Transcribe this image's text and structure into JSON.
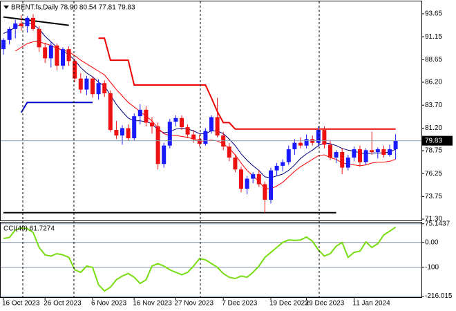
{
  "chart_data": [
    {
      "type": "candlestick",
      "title": "BRENT.fs,Daily  78.90 80.54 77.81 79.83",
      "categories": [
        "16 Oct 2023",
        null,
        null,
        null,
        null,
        null,
        null,
        "26 Oct 2023",
        null,
        null,
        null,
        null,
        null,
        null,
        null,
        "6 Nov 2023",
        null,
        null,
        null,
        null,
        null,
        null,
        "16 Nov 2023",
        null,
        null,
        null,
        null,
        null,
        null,
        "27 Nov 2023",
        null,
        null,
        null,
        null,
        null,
        null,
        null,
        "7 Dec 2023",
        null,
        null,
        null,
        null,
        null,
        null,
        null,
        "19 Dec 2023",
        null,
        null,
        null,
        null,
        null,
        "29 Dec 2023",
        null,
        null,
        null,
        null,
        null,
        null,
        null,
        "11 Jan 2024",
        null,
        null,
        null,
        null,
        null,
        null,
        null
      ],
      "open": [
        89.8,
        90.8,
        92.0,
        92.6,
        92.3,
        93.2,
        92.0,
        90.0,
        88.8,
        90.2,
        88.0,
        89.8,
        88.5,
        86.6,
        85.4,
        86.6,
        84.9,
        86.1,
        85.0,
        81.0,
        80.4,
        81.2,
        80.1,
        82.5,
        83.2,
        81.8,
        81.4,
        77.3,
        79.3,
        81.9,
        82.3,
        81.3,
        80.5,
        80.0,
        79.5,
        80.9,
        82.4,
        80.4,
        79.2,
        78.0,
        76.7,
        74.6,
        75.7,
        76.2,
        75.1,
        73.4,
        76.6,
        77.1,
        77.5,
        78.9,
        79.6,
        79.3,
        80.0,
        79.6,
        81.0,
        79.4,
        78.0,
        78.6,
        76.9,
        78.0,
        78.9,
        77.5,
        78.8,
        78.6,
        78.9,
        78.3,
        78.9
      ],
      "high": [
        91.0,
        92.2,
        93.0,
        93.5,
        93.4,
        93.6,
        92.3,
        90.5,
        90.6,
        90.4,
        90.0,
        90.1,
        88.8,
        87.2,
        86.9,
        86.8,
        86.5,
        86.4,
        85.3,
        82.0,
        81.5,
        81.6,
        82.8,
        83.8,
        83.6,
        82.4,
        81.8,
        79.6,
        82.2,
        82.6,
        82.6,
        81.6,
        81.0,
        80.5,
        81.2,
        82.6,
        84.5,
        80.8,
        79.6,
        78.3,
        77.0,
        76.0,
        76.4,
        76.6,
        75.4,
        76.9,
        77.4,
        77.8,
        79.3,
        80.0,
        80.2,
        80.5,
        80.4,
        81.4,
        81.4,
        79.8,
        78.8,
        79.0,
        78.3,
        79.2,
        79.3,
        79.0,
        80.8,
        79.1,
        79.3,
        79.4,
        80.54
      ],
      "low": [
        89.2,
        90.3,
        91.0,
        91.8,
        91.6,
        91.8,
        89.5,
        88.3,
        87.8,
        87.5,
        87.6,
        88.0,
        86.2,
        85.0,
        84.8,
        84.5,
        84.3,
        84.6,
        80.8,
        80.0,
        79.4,
        79.8,
        79.9,
        81.6,
        81.4,
        80.6,
        76.7,
        76.9,
        79.0,
        81.4,
        81.0,
        80.1,
        79.6,
        79.2,
        79.3,
        80.6,
        80.2,
        78.8,
        77.6,
        76.4,
        74.2,
        74.0,
        75.2,
        74.8,
        72.0,
        73.0,
        76.0,
        76.5,
        77.2,
        78.3,
        79.0,
        79.0,
        79.3,
        79.2,
        79.0,
        77.7,
        77.4,
        76.2,
        76.6,
        77.6,
        77.0,
        77.2,
        78.3,
        77.9,
        78.0,
        78.1,
        77.81
      ],
      "close": [
        90.8,
        92.0,
        92.6,
        92.3,
        93.2,
        92.0,
        90.0,
        88.8,
        90.2,
        88.0,
        89.8,
        88.5,
        86.6,
        85.4,
        86.6,
        84.9,
        86.1,
        85.0,
        81.0,
        80.4,
        81.2,
        80.1,
        82.5,
        83.2,
        81.8,
        81.4,
        77.3,
        79.3,
        81.9,
        82.3,
        81.3,
        80.5,
        80.0,
        79.5,
        80.9,
        82.4,
        80.4,
        79.2,
        78.0,
        76.7,
        74.6,
        75.7,
        76.2,
        75.1,
        73.4,
        76.6,
        77.1,
        77.5,
        78.9,
        79.6,
        79.3,
        80.0,
        79.6,
        81.0,
        79.4,
        78.0,
        78.6,
        76.9,
        78.0,
        78.9,
        77.5,
        78.8,
        78.6,
        78.9,
        78.3,
        78.9,
        79.83
      ],
      "up_color": "#1a1aff",
      "down_color": "#ee1111",
      "price_line_color": "#8a9fb8",
      "overlays": [
        {
          "color": "#000080",
          "values": [
            91.5,
            91.8,
            92.2,
            92.5,
            92.7,
            92.5,
            92.0,
            91.2,
            90.6,
            90.0,
            89.6,
            89.2,
            88.6,
            87.8,
            87.2,
            86.8,
            86.2,
            85.8,
            84.8,
            83.8,
            83.0,
            82.3,
            82.0,
            82.0,
            81.9,
            81.7,
            81.0,
            80.7,
            80.8,
            81.1,
            81.2,
            81.1,
            80.9,
            80.6,
            80.6,
            80.9,
            80.9,
            80.6,
            80.0,
            79.3,
            78.4,
            77.7,
            77.1,
            76.6,
            75.9,
            75.8,
            76.0,
            76.2,
            76.6,
            77.2,
            77.9,
            78.4,
            78.8,
            79.3,
            79.6,
            79.5,
            79.3,
            79.0,
            78.8,
            78.7,
            78.5,
            78.4,
            78.5,
            78.5,
            78.5,
            78.6,
            78.9
          ]
        },
        {
          "color": "#ff0000",
          "values": [
            null,
            null,
            89.6,
            90.0,
            90.4,
            90.6,
            90.6,
            90.4,
            90.2,
            89.9,
            89.7,
            89.5,
            89.1,
            88.6,
            88.2,
            87.8,
            87.4,
            87.0,
            86.2,
            85.4,
            84.7,
            84.0,
            83.5,
            83.0,
            82.5,
            82.0,
            81.2,
            80.6,
            80.4,
            80.4,
            80.3,
            80.2,
            80.0,
            79.8,
            79.8,
            79.9,
            79.8,
            79.5,
            79.0,
            78.3,
            77.4,
            76.6,
            76.0,
            75.4,
            74.6,
            74.6,
            74.9,
            75.3,
            75.9,
            76.5,
            77.0,
            77.4,
            77.8,
            78.2,
            78.3,
            78.0,
            77.8,
            77.4,
            77.3,
            77.2,
            77.1,
            77.2,
            77.4,
            77.5,
            77.5,
            77.6,
            77.8
          ]
        },
        {
          "color": "#ee0000",
          "values": [
            null,
            null,
            null,
            null,
            null,
            null,
            null,
            null,
            null,
            null,
            null,
            null,
            null,
            null,
            null,
            null,
            91.0,
            91.0,
            88.6,
            88.6,
            88.6,
            88.6,
            85.9,
            85.9,
            85.9,
            85.9,
            85.9,
            85.9,
            85.9,
            85.9,
            85.9,
            85.9,
            85.9,
            85.9,
            85.9,
            84.5,
            83.0,
            81.8,
            81.8,
            81.1,
            81.1,
            81.1,
            81.1,
            81.1,
            81.1,
            81.1,
            81.1,
            81.1,
            81.1,
            81.1,
            81.1,
            81.1,
            81.1,
            81.1,
            81.1,
            81.1,
            81.1,
            81.1,
            81.1,
            81.1,
            81.1,
            81.1,
            81.1,
            81.1,
            81.1,
            81.1,
            81.1
          ]
        }
      ],
      "lines": [
        {
          "color": "#000000",
          "x": [
            0,
            11
          ],
          "y": [
            93.3,
            92.4
          ]
        },
        {
          "color": "#000000",
          "x": [
            0,
            56
          ],
          "y": [
            72.0,
            72.0
          ]
        },
        {
          "color": "#0000cc",
          "x": [
            3,
            4,
            15
          ],
          "y": [
            82.9,
            84.0,
            84.0
          ]
        }
      ],
      "ylim": [
        71.15,
        95.0
      ],
      "yticks": [
        93.65,
        91.15,
        88.65,
        {
          "value": 86.2,
          "label": "86.20"
        },
        {
          "value": 83.7,
          "label": "83.70"
        },
        {
          "value": 81.2,
          "label": "81.20"
        },
        78.75,
        76.25,
        73.75,
        {
          "value": 71.3,
          "label": "71.30"
        }
      ]
    },
    {
      "type": "line",
      "title": "CCI(40) 61.7274",
      "color": "#77dd11",
      "values": [
        16,
        20,
        50,
        58,
        55,
        40,
        -20,
        -50,
        -55,
        -45,
        -50,
        -60,
        -110,
        -120,
        -95,
        -100,
        -170,
        -195,
        -180,
        -150,
        -135,
        -125,
        -140,
        -165,
        -150,
        -95,
        -85,
        -95,
        -110,
        -120,
        -130,
        -120,
        -95,
        -65,
        -70,
        -85,
        -100,
        -125,
        -140,
        -145,
        -135,
        -140,
        -120,
        -95,
        -60,
        -40,
        -20,
        0,
        10,
        8,
        10,
        22,
        5,
        -30,
        -55,
        -45,
        -15,
        0,
        -60,
        -40,
        -35,
        2,
        -20,
        -5,
        30,
        45,
        61.7274
      ],
      "ylim": [
        -220,
        80
      ],
      "yticks": [
        75.1437,
        {
          "value": 0,
          "label": "0.00"
        },
        -100,
        -216.015
      ]
    }
  ]
}
